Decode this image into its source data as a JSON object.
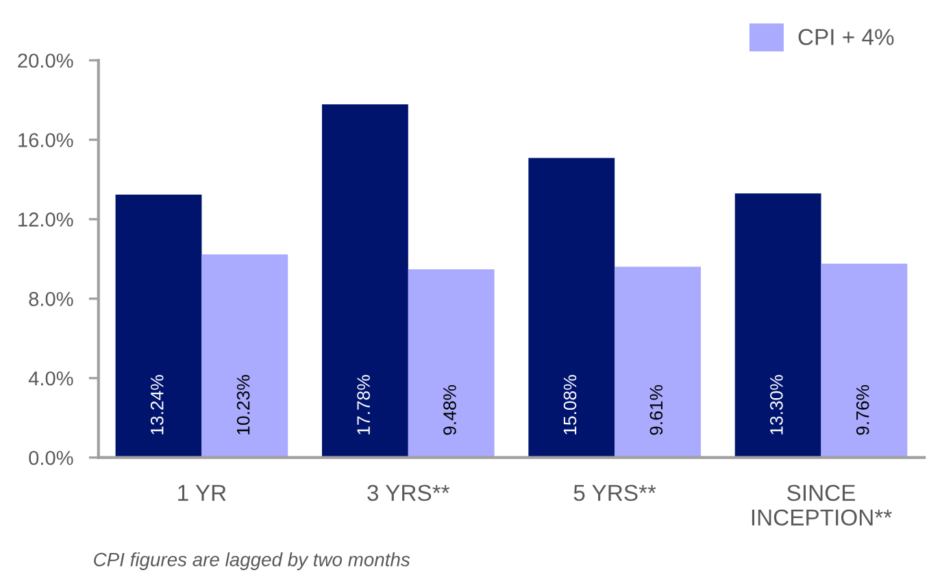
{
  "chart_data": {
    "type": "bar",
    "categories": [
      "1 YR",
      "3 YRS**",
      "5 YRS**",
      "SINCE\nINCEPTION**"
    ],
    "series": [
      {
        "color": "#00146e",
        "values": [
          13.24,
          17.78,
          15.08,
          13.3
        ],
        "value_labels": [
          "13.24%",
          "17.78%",
          "15.08%",
          "13.30%"
        ]
      },
      {
        "name": "CPI + 4%",
        "color": "#aaaaff",
        "values": [
          10.23,
          9.48,
          9.61,
          9.76
        ],
        "value_labels": [
          "10.23%",
          "9.48%",
          "9.61%",
          "9.76%"
        ]
      }
    ],
    "ylim": [
      0,
      20
    ],
    "yticks": [
      {
        "value": 0,
        "label": "0.0%"
      },
      {
        "value": 4,
        "label": "4.0%"
      },
      {
        "value": 8,
        "label": "8.0%"
      },
      {
        "value": 12,
        "label": "12.0%"
      },
      {
        "value": 16,
        "label": "16.0%"
      },
      {
        "value": 20,
        "label": "20.0%"
      }
    ],
    "grid": false,
    "legend": "top right",
    "annotations": [
      "CPI figures are lagged by two months"
    ]
  }
}
